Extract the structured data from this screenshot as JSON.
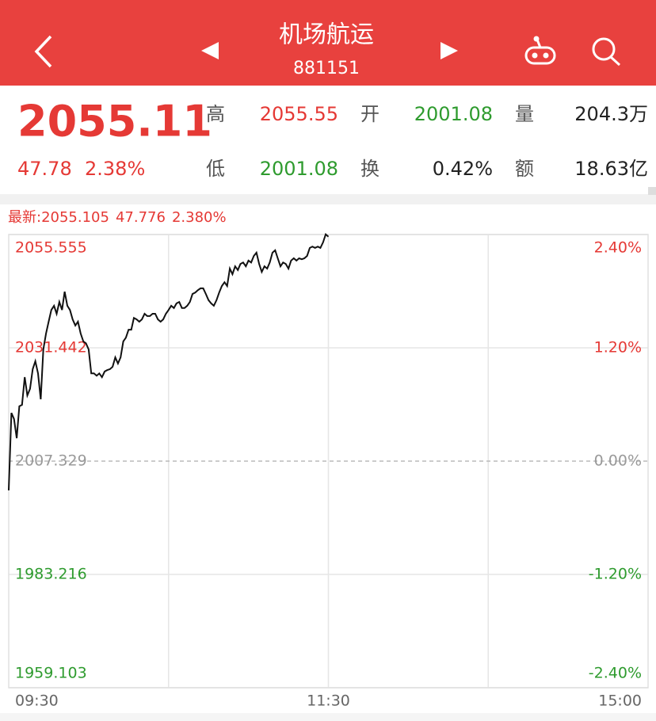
{
  "header": {
    "title": "机场航运",
    "code": "881151"
  },
  "quote": {
    "price": "2055.11",
    "change": "47.78",
    "change_pct": "2.38%",
    "stats": [
      [
        {
          "label": "高",
          "value": "2055.55",
          "tone": "up"
        },
        {
          "label": "开",
          "value": "2001.08",
          "tone": "down"
        },
        {
          "label": "量",
          "value": "204.3万",
          "tone": "flat"
        }
      ],
      [
        {
          "label": "低",
          "value": "2001.08",
          "tone": "down"
        },
        {
          "label": "换",
          "value": "0.42%",
          "tone": "flat"
        },
        {
          "label": "额",
          "value": "18.63亿",
          "tone": "flat"
        }
      ]
    ]
  },
  "latest_line": [
    "最新:2055.105",
    "47.776",
    "2.380%"
  ],
  "chart_data": {
    "type": "line",
    "line_color": "#111111",
    "up_color": "#e53935",
    "down_color": "#2e9b2e",
    "flat_color": "#9a9a9a",
    "x": [
      0,
      1,
      2,
      3,
      4,
      5,
      6,
      7,
      8,
      9,
      10,
      11,
      12,
      13,
      14,
      15,
      16,
      17,
      18,
      19,
      20,
      21,
      22,
      23,
      24,
      25,
      26,
      27,
      28,
      29,
      30,
      31,
      32,
      33,
      34,
      35,
      36,
      37,
      38,
      39,
      40,
      41,
      42,
      43,
      44,
      45,
      46,
      47,
      48,
      49,
      50,
      51,
      52,
      53,
      54,
      55,
      56,
      57,
      58,
      59,
      60,
      61,
      62,
      63,
      64,
      65,
      66,
      67,
      68,
      69,
      70,
      71,
      72,
      73,
      74,
      75,
      76,
      77,
      78,
      79,
      80,
      81,
      82,
      83,
      84,
      85,
      86,
      87,
      88,
      89,
      90,
      91,
      92,
      93,
      94,
      95,
      96,
      97,
      98,
      99,
      100,
      101,
      102,
      103,
      104,
      105,
      106,
      107,
      108,
      109,
      110,
      111,
      112,
      113,
      114,
      115,
      116,
      117,
      118,
      119,
      120
    ],
    "values": [
      2001.1,
      2017.6,
      2016.3,
      2012.2,
      2019.0,
      2019.3,
      2025.2,
      2021.3,
      2022.7,
      2026.9,
      2028.6,
      2026.0,
      2020.5,
      2031.1,
      2034.5,
      2037.0,
      2039.5,
      2040.4,
      2038.7,
      2041.2,
      2039.5,
      2043.4,
      2040.4,
      2039.5,
      2037.5,
      2036.2,
      2037.0,
      2034.5,
      2032.8,
      2032.4,
      2031.1,
      2026.0,
      2026.0,
      2025.5,
      2026.0,
      2025.2,
      2026.4,
      2026.7,
      2026.9,
      2027.4,
      2029.4,
      2028.1,
      2029.4,
      2032.8,
      2033.6,
      2035.3,
      2035.3,
      2037.8,
      2037.5,
      2037.0,
      2037.5,
      2038.7,
      2038.2,
      2038.2,
      2038.7,
      2038.7,
      2037.5,
      2037.0,
      2037.5,
      2038.7,
      2039.5,
      2040.4,
      2039.9,
      2040.9,
      2041.2,
      2039.9,
      2039.9,
      2040.4,
      2041.2,
      2042.9,
      2043.2,
      2043.7,
      2044.1,
      2044.1,
      2042.9,
      2041.6,
      2040.9,
      2040.4,
      2041.6,
      2043.2,
      2044.6,
      2045.4,
      2044.6,
      2048.3,
      2047.1,
      2048.8,
      2048.0,
      2049.3,
      2049.6,
      2048.8,
      2050.0,
      2049.6,
      2051.0,
      2051.7,
      2049.3,
      2047.6,
      2048.8,
      2048.3,
      2049.6,
      2051.7,
      2052.2,
      2050.5,
      2048.8,
      2049.6,
      2049.3,
      2048.3,
      2050.0,
      2050.5,
      2050.0,
      2050.5,
      2050.3,
      2050.5,
      2051.0,
      2052.7,
      2053.0,
      2052.7,
      2053.0,
      2052.7,
      2053.9,
      2055.6,
      2055.1
    ],
    "xlim": [
      0,
      240
    ],
    "xticks": [
      {
        "value": 0,
        "label": "09:30"
      },
      {
        "value": 120,
        "label": "11:30"
      },
      {
        "value": 240,
        "label": "15:00"
      }
    ],
    "xgrid": [
      60,
      120,
      180
    ],
    "ylim": [
      1959.103,
      2055.555
    ],
    "yticks": [
      2055.555,
      2031.442,
      2007.329,
      1983.216,
      1959.103
    ],
    "y2lim": [
      -2.4,
      2.4
    ],
    "y2ticks": [
      {
        "value": 2.4,
        "label": "2.40%"
      },
      {
        "value": 1.2,
        "label": "1.20%"
      },
      {
        "value": 0,
        "label": "0.00%"
      },
      {
        "value": -1.2,
        "label": "-1.20%"
      },
      {
        "value": -2.4,
        "label": "-2.40%"
      }
    ],
    "baseline": 2007.329
  }
}
